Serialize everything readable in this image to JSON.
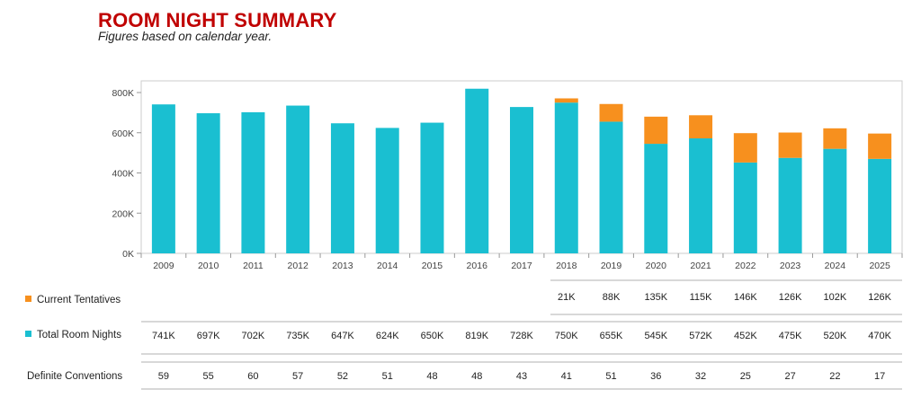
{
  "header": {
    "title": "ROOM NIGHT SUMMARY",
    "subtitle": "Figures based on calendar year."
  },
  "chart_data": {
    "type": "bar",
    "stacked": true,
    "categories": [
      "2009",
      "2010",
      "2011",
      "2012",
      "2013",
      "2014",
      "2015",
      "2016",
      "2017",
      "2018",
      "2019",
      "2020",
      "2021",
      "2022",
      "2023",
      "2024",
      "2025"
    ],
    "series": [
      {
        "name": "Total Room Nights",
        "color": "#1abfd1",
        "values": [
          741,
          697,
          702,
          735,
          647,
          624,
          650,
          819,
          728,
          750,
          655,
          545,
          572,
          452,
          475,
          520,
          470
        ],
        "labels": [
          "741K",
          "697K",
          "702K",
          "735K",
          "647K",
          "624K",
          "650K",
          "819K",
          "728K",
          "750K",
          "655K",
          "545K",
          "572K",
          "452K",
          "475K",
          "520K",
          "470K"
        ]
      },
      {
        "name": "Current Tentatives",
        "color": "#f7901e",
        "values": [
          null,
          null,
          null,
          null,
          null,
          null,
          null,
          null,
          null,
          21,
          88,
          135,
          115,
          146,
          126,
          102,
          126
        ],
        "labels": [
          "",
          "",
          "",
          "",
          "",
          "",
          "",
          "",
          "",
          "21K",
          "88K",
          "135K",
          "115K",
          "146K",
          "126K",
          "102K",
          "126K"
        ]
      }
    ],
    "units": "thousands of room nights",
    "yticks": [
      "0K",
      "200K",
      "400K",
      "600K",
      "800K"
    ],
    "ylim": [
      0,
      850
    ],
    "grid": false,
    "table_rows": [
      {
        "name": "Definite Conventions",
        "values": [
          "59",
          "55",
          "60",
          "57",
          "52",
          "51",
          "48",
          "48",
          "43",
          "41",
          "51",
          "36",
          "32",
          "25",
          "27",
          "22",
          "17"
        ]
      }
    ]
  }
}
